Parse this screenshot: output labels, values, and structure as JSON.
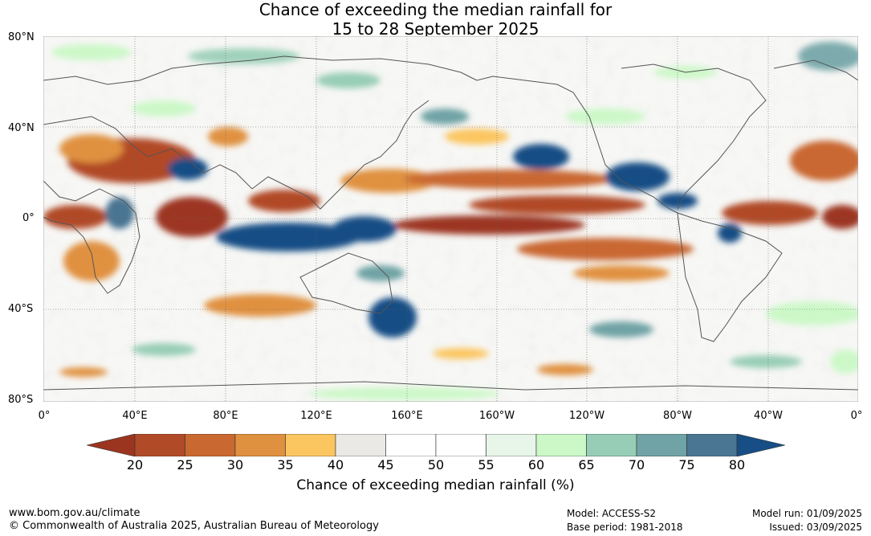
{
  "title_line1": "Chance of exceeding the median rainfall for",
  "title_line2": "15 to 28 September 2025",
  "lat_labels": [
    "80°N",
    "40°N",
    "0°",
    "40°S",
    "80°S"
  ],
  "lon_labels": [
    "0°",
    "40°E",
    "80°E",
    "120°E",
    "160°E",
    "160°W",
    "120°W",
    "80°W",
    "40°W",
    "0°"
  ],
  "legend": {
    "title": "Chance of exceeding median rainfall (%)",
    "ticks": [
      "20",
      "25",
      "30",
      "35",
      "40",
      "45",
      "50",
      "55",
      "60",
      "65",
      "70",
      "75",
      "80"
    ],
    "colors": [
      "#9c3520",
      "#b14a26",
      "#c96830",
      "#e0913f",
      "#fbc660",
      "#ebe9e5",
      "#ffffff",
      "#ffffff",
      "#e8f5e9",
      "#ccf8c8",
      "#97cdb6",
      "#70a3a5",
      "#4a7593",
      "#174e85"
    ]
  },
  "footer": {
    "url": "www.bom.gov.au/climate",
    "copyright": "© Commonwealth of Australia 2025, Australian Bureau of Meteorology",
    "model": "Model: ACCESS-S2",
    "base_period": "Base period: 1981-2018",
    "model_run": "Model run: 01/09/2025",
    "issued": "Issued: 03/09/2025"
  }
}
